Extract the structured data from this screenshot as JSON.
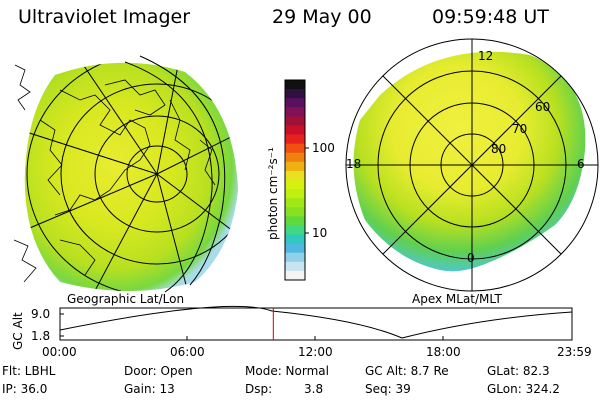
{
  "header": {
    "title": "Ultraviolet Imager",
    "date": "29 May 00",
    "time": "09:59:48 UT"
  },
  "colorbar": {
    "unit_label": "photon cm⁻²s⁻¹",
    "tick_labels": [
      "100",
      "10"
    ],
    "colors": [
      "#101010",
      "#301040",
      "#5a1060",
      "#801058",
      "#a01038",
      "#c8102a",
      "#e82020",
      "#f05010",
      "#f08010",
      "#f0b010",
      "#e8e020",
      "#d8f010",
      "#c0f010",
      "#a0e818",
      "#88e020",
      "#60d840",
      "#40d880",
      "#30c8c0",
      "#50b8e0",
      "#90d0e8",
      "#c8e4f0",
      "#f4f4f4"
    ]
  },
  "left_panel": {
    "caption": "Geographic Lat/Lon"
  },
  "right_panel": {
    "caption": "Apex MLat/MLT",
    "mlt_labels": [
      "12",
      "18",
      "6",
      "0"
    ],
    "lat_labels": [
      "60",
      "70",
      "80"
    ]
  },
  "altitude_plot": {
    "ylabel": "GC Alt",
    "ytick_labels": [
      "9.0",
      "1.8"
    ],
    "xtick_labels": [
      "00:00",
      "06:00",
      "12:00",
      "18:00",
      "23:59"
    ],
    "current_time_fraction": 0.4166,
    "marker_color": "#d00000"
  },
  "info": {
    "filter": "Flt: LBHL",
    "ip": "IP: 36.0",
    "door": "Door: Open",
    "gain": "Gain: 13",
    "mode": "Mode: Normal",
    "dsp_label": "Dsp:",
    "dsp_value": "3.8",
    "gc_alt": "GC Alt: 8.7 Re",
    "seq": "Seq: 39",
    "glat": "GLat: 82.3",
    "glon": "GLon: 324.2"
  }
}
